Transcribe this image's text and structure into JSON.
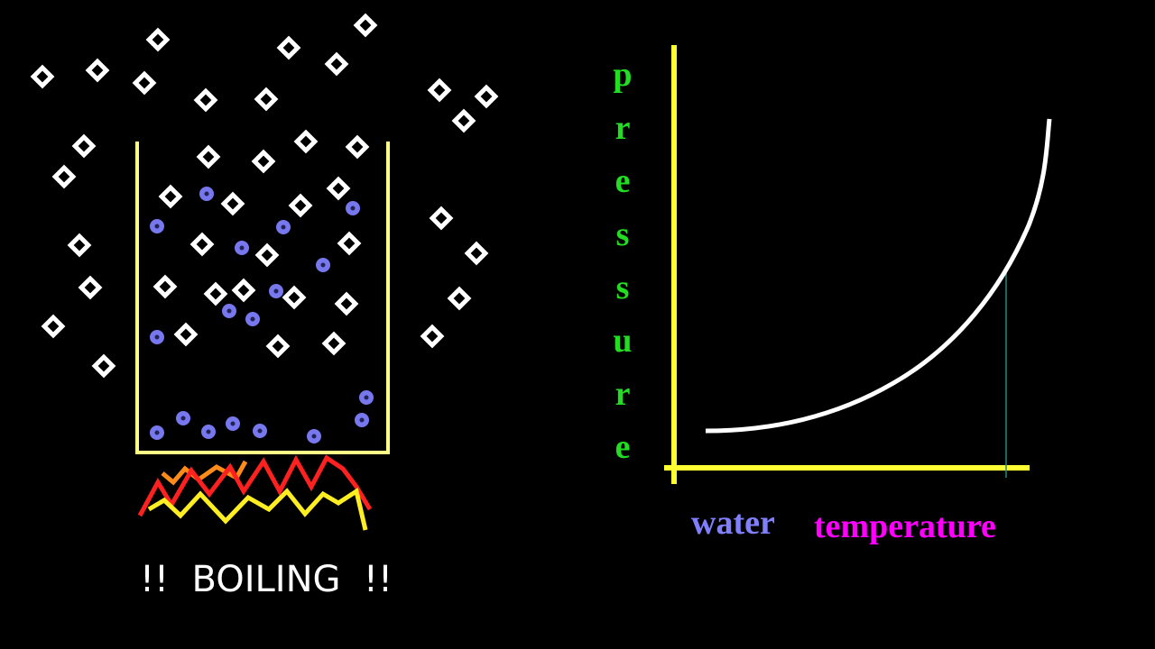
{
  "caption": "!!  BOILING  !!",
  "graph": {
    "y_label": "pressure",
    "x_label_1": "water",
    "x_label_2": "temperature"
  }
}
